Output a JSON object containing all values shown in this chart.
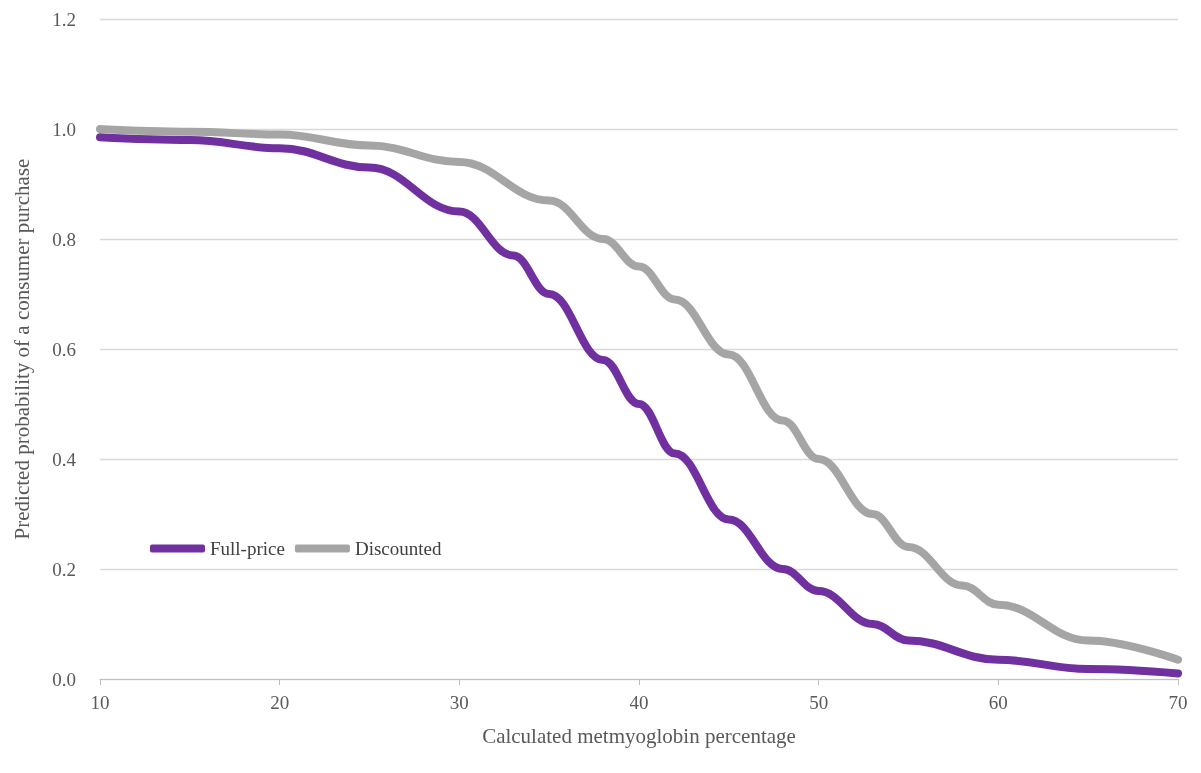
{
  "chart_data": {
    "type": "line",
    "xlabel": "Calculated metmyoglobin percentage",
    "ylabel": "Predicted probability of a consumer purchase",
    "series": [
      {
        "name": "Full-price",
        "color": "#7030a0",
        "x": [
          10,
          15,
          20,
          25,
          30,
          33,
          35,
          38,
          40,
          42,
          45,
          48,
          50,
          53,
          55,
          60,
          65,
          70
        ],
        "values": [
          0.985,
          0.98,
          0.965,
          0.93,
          0.85,
          0.77,
          0.7,
          0.58,
          0.5,
          0.41,
          0.29,
          0.2,
          0.16,
          0.1,
          0.07,
          0.035,
          0.018,
          0.01
        ]
      },
      {
        "name": "Discounted",
        "color": "#a5a5a5",
        "x": [
          10,
          15,
          20,
          25,
          30,
          35,
          38,
          40,
          42,
          45,
          48,
          50,
          53,
          55,
          58,
          60,
          65,
          70
        ],
        "values": [
          1.0,
          0.995,
          0.99,
          0.97,
          0.94,
          0.87,
          0.8,
          0.75,
          0.69,
          0.59,
          0.47,
          0.4,
          0.3,
          0.24,
          0.17,
          0.135,
          0.07,
          0.035
        ]
      }
    ],
    "xlim": [
      10,
      70
    ],
    "xticks": [
      10,
      20,
      30,
      40,
      50,
      60,
      70
    ],
    "ylim": [
      0,
      1.2
    ],
    "yticks": [
      {
        "value": 0,
        "label": "0.0"
      },
      {
        "value": 0.2,
        "label": "0.2"
      },
      {
        "value": 0.4,
        "label": "0.4"
      },
      {
        "value": 0.6,
        "label": "0.6"
      },
      {
        "value": 0.8,
        "label": "0.8"
      },
      {
        "value": 1,
        "label": "1.0"
      },
      {
        "value": 1.2,
        "label": "1.2"
      }
    ],
    "grid": "y",
    "legend": "bottom left",
    "line_style": "solid"
  }
}
